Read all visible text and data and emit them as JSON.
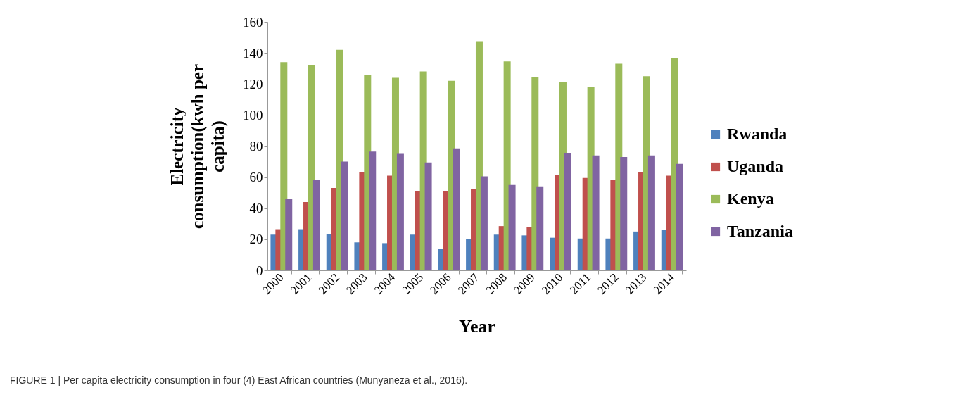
{
  "chart_data": {
    "type": "bar",
    "categories": [
      "2000",
      "2001",
      "2002",
      "2003",
      "2004",
      "2005",
      "2006",
      "2007",
      "2008",
      "2009",
      "2010",
      "2011",
      "2012",
      "2013",
      "2014"
    ],
    "series": [
      {
        "name": "Rwanda",
        "color": "#4f81bd",
        "values": [
          23,
          26.5,
          23.5,
          18,
          17.5,
          23,
          14,
          20,
          23,
          22.5,
          21,
          20.5,
          20.5,
          25,
          26
        ]
      },
      {
        "name": "Uganda",
        "color": "#c0504d",
        "values": [
          26.5,
          44,
          53,
          63,
          61,
          51,
          51,
          52.5,
          28.5,
          28,
          61.5,
          59.5,
          58,
          63.5,
          61
        ]
      },
      {
        "name": "Kenya",
        "color": "#9bbb59",
        "values": [
          134,
          132,
          142,
          125.5,
          124,
          128,
          122,
          147.5,
          134.5,
          124.5,
          121.5,
          118,
          133,
          125,
          136.5
        ]
      },
      {
        "name": "Tanzania",
        "color": "#8064a2",
        "values": [
          46,
          58.5,
          70,
          76.5,
          75,
          69.5,
          78.5,
          60.5,
          55,
          54,
          75.5,
          74,
          73,
          74,
          68.5
        ]
      }
    ],
    "xlabel": "Year",
    "ylabel": "Electricity consumption(kwh per capita)",
    "ylim": [
      0,
      160
    ],
    "yticks": [
      0,
      20,
      40,
      60,
      80,
      100,
      120,
      140,
      160
    ],
    "grid": false,
    "legend": "right",
    "annotations": [
      "FIGURE 1 | Per capita electricity consumption in four (4) East African countries (Munyaneza et al., 2016)."
    ]
  }
}
